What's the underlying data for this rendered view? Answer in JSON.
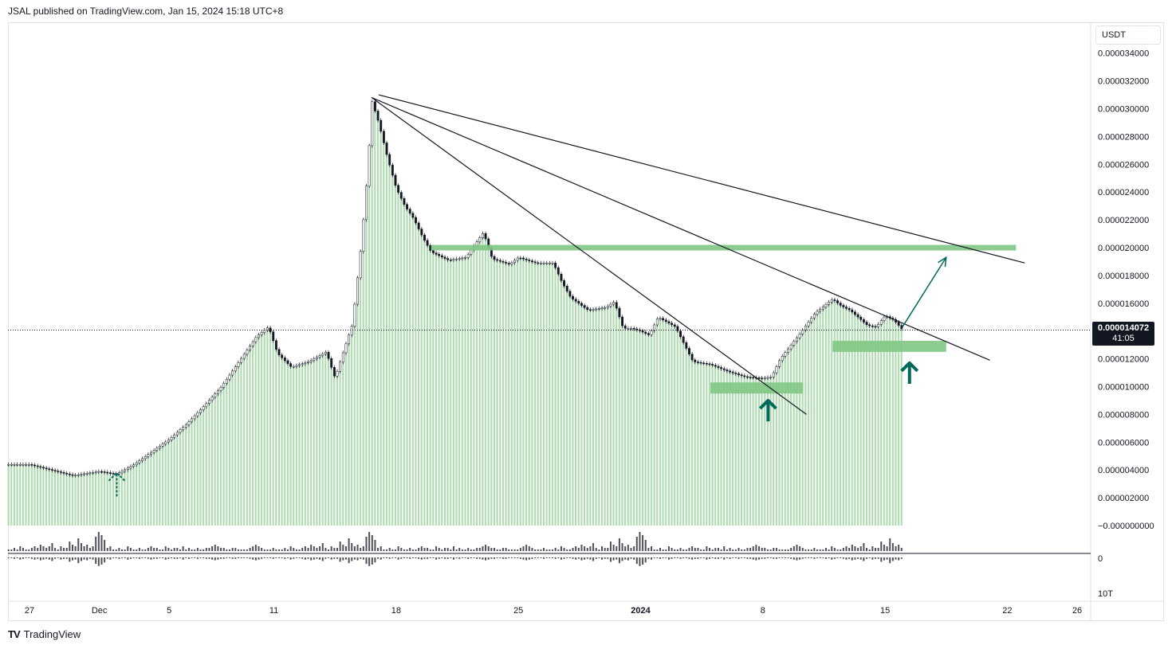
{
  "header": {
    "text": "JSAL published on TradingView.com, Jan 15, 2024 15:18 UTC+8"
  },
  "currency": "USDT",
  "current_price": {
    "price": "0.000014072",
    "countdown": "41:05"
  },
  "footer": {
    "logo_mark": "TV",
    "brand": "TradingView"
  },
  "volume_axis": {
    "top_label": "0",
    "bottom_label": "10T"
  },
  "colors": {
    "candle_up": "#26a69a",
    "volume_bar": "#a5d6a7",
    "zone": "#81c784",
    "arrow": "#00695c",
    "trendline": "#131722"
  },
  "chart_data": {
    "type": "candlestick",
    "y_ticks": [
      "0.000034000",
      "0.000032000",
      "0.000030000",
      "0.000028000",
      "0.000026000",
      "0.000024000",
      "0.000022000",
      "0.000020000",
      "0.000018000",
      "0.000016000",
      "0.000012000",
      "0.000010000",
      "0.000008000",
      "0.000006000",
      "0.000004000",
      "0.000002000",
      "−0.000000000"
    ],
    "y_tick_values": [
      34,
      32,
      30,
      28,
      26,
      24,
      22,
      20,
      18,
      16,
      12,
      10,
      8,
      6,
      4,
      2,
      0
    ],
    "x_ticks": [
      {
        "label": "27",
        "day": 0
      },
      {
        "label": "Dec",
        "day": 4
      },
      {
        "label": "5",
        "day": 8
      },
      {
        "label": "11",
        "day": 14
      },
      {
        "label": "18",
        "day": 21
      },
      {
        "label": "25",
        "day": 28
      },
      {
        "label": "2024",
        "day": 35
      },
      {
        "label": "8",
        "day": 42
      },
      {
        "label": "15",
        "day": 49
      },
      {
        "label": "22",
        "day": 56
      },
      {
        "label": "26",
        "day": 60
      }
    ],
    "unit_scale": "price values in units of 1e-6 USDT",
    "price_path": [
      [
        0,
        4.4
      ],
      [
        2.5,
        3.6
      ],
      [
        4,
        3.9
      ],
      [
        5,
        3.7
      ],
      [
        6,
        4.4
      ],
      [
        7,
        5.3
      ],
      [
        8,
        6.2
      ],
      [
        9,
        7.3
      ],
      [
        10,
        8.6
      ],
      [
        11,
        10.0
      ],
      [
        12,
        11.8
      ],
      [
        13,
        13.6
      ],
      [
        13.7,
        14.3
      ],
      [
        14.2,
        12.4
      ],
      [
        15,
        11.4
      ],
      [
        16,
        11.8
      ],
      [
        17,
        12.5
      ],
      [
        17.5,
        10.6
      ],
      [
        18,
        12.6
      ],
      [
        18.5,
        14.5
      ],
      [
        19,
        20.2
      ],
      [
        19.4,
        26.0
      ],
      [
        19.6,
        30.6
      ],
      [
        20,
        29.0
      ],
      [
        20.5,
        26.5
      ],
      [
        21,
        24.3
      ],
      [
        21.5,
        23.0
      ],
      [
        22,
        22.1
      ],
      [
        22.5,
        20.8
      ],
      [
        23,
        19.7
      ],
      [
        24,
        19.1
      ],
      [
        25,
        19.3
      ],
      [
        26,
        21.1
      ],
      [
        26.5,
        19.2
      ],
      [
        27.5,
        18.8
      ],
      [
        28,
        19.3
      ],
      [
        29,
        18.9
      ],
      [
        30,
        18.9
      ],
      [
        30.5,
        17.5
      ],
      [
        31,
        16.4
      ],
      [
        32,
        15.5
      ],
      [
        33,
        15.7
      ],
      [
        33.5,
        16.1
      ],
      [
        34,
        14.2
      ],
      [
        34.5,
        14.2
      ],
      [
        35,
        14.0
      ],
      [
        35.5,
        13.7
      ],
      [
        36,
        15.0
      ],
      [
        37,
        14.3
      ],
      [
        38,
        11.8
      ],
      [
        39,
        11.6
      ],
      [
        40,
        11.1
      ],
      [
        41,
        10.7
      ],
      [
        42,
        10.6
      ],
      [
        42.5,
        10.7
      ],
      [
        43,
        12.0
      ],
      [
        44,
        13.6
      ],
      [
        45,
        15.3
      ],
      [
        46,
        16.3
      ],
      [
        46.5,
        15.8
      ],
      [
        47,
        15.5
      ],
      [
        48,
        14.4
      ],
      [
        48.5,
        14.3
      ],
      [
        49,
        15.1
      ],
      [
        49.5,
        14.8
      ],
      [
        50,
        14.1
      ]
    ],
    "volume_profile": [
      1,
      1,
      2,
      1,
      3,
      2,
      1,
      1,
      2,
      3,
      2,
      4,
      3,
      2,
      3,
      5,
      2,
      1,
      3,
      2,
      2,
      6,
      4,
      3,
      8,
      5,
      3,
      4,
      2,
      3,
      9,
      12,
      10,
      7,
      2,
      3,
      1,
      1,
      2,
      1,
      1,
      3,
      2,
      1,
      1,
      2,
      1,
      1,
      2,
      3,
      2,
      2,
      1,
      1,
      3,
      2,
      1,
      2,
      2,
      1,
      3,
      1,
      2,
      1,
      1,
      2,
      1,
      1,
      2,
      2,
      3,
      4,
      3,
      2,
      2,
      1,
      1,
      2,
      2,
      1,
      1,
      1,
      1,
      2,
      3,
      4,
      3,
      2,
      1,
      1,
      1,
      2,
      1
    ],
    "annotations": {
      "zones": [
        {
          "x0": 23,
          "x1": 56.5,
          "y0": 19.8,
          "y1": 20.2
        },
        {
          "x0": 39,
          "x1": 44.3,
          "y0": 9.5,
          "y1": 10.3
        },
        {
          "x0": 46,
          "x1": 52.5,
          "y0": 12.5,
          "y1": 13.3
        }
      ],
      "trendlines": [
        {
          "x0": 20,
          "y0": 31.0,
          "x1": 57,
          "y1": 18.9
        },
        {
          "x0": 19.6,
          "y0": 30.8,
          "x1": 55,
          "y1": 11.9
        },
        {
          "x0": 19.6,
          "y0": 30.8,
          "x1": 44.5,
          "y1": 8.0
        }
      ],
      "projection_arrow": {
        "x0": 50,
        "y0": 14.3,
        "x1": 52.5,
        "y1": 19.3
      },
      "up_arrows": [
        {
          "x": 5,
          "y_tip": 3.8,
          "y_base": 2.1,
          "dashed": true
        },
        {
          "x": 42.3,
          "y_tip": 9.0,
          "y_base": 7.5,
          "dashed": false
        },
        {
          "x": 50.4,
          "y_tip": 11.7,
          "y_base": 10.2,
          "dashed": false
        }
      ]
    }
  }
}
